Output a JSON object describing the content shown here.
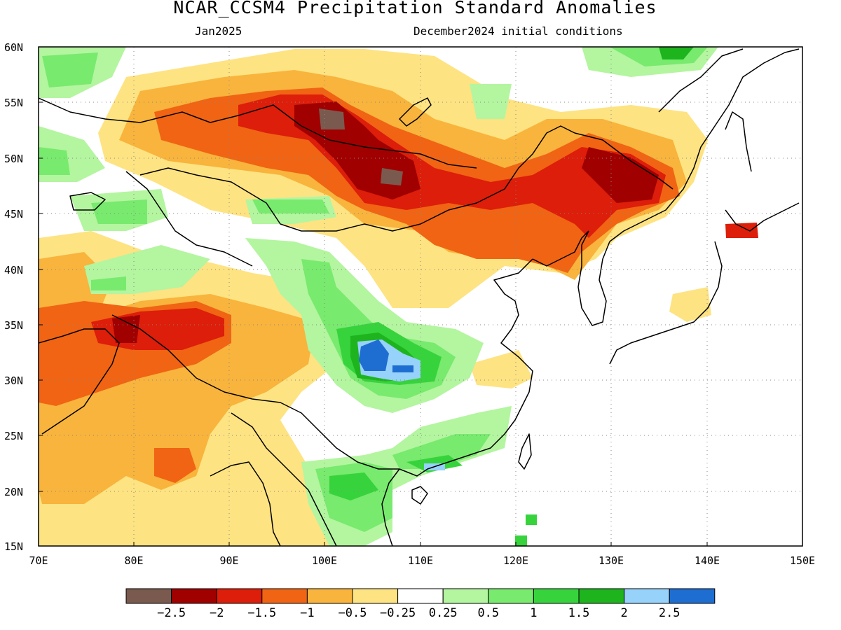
{
  "header": {
    "title": "NCAR_CCSM4 Precipitation Standard Anomalies",
    "target_month": "Jan2025",
    "init_conditions": "December2024 initial conditions"
  },
  "map": {
    "lon_range": [
      70,
      150
    ],
    "lat_range": [
      15,
      60
    ],
    "lat_ticks": [
      "60N",
      "55N",
      "50N",
      "45N",
      "40N",
      "35N",
      "30N",
      "25N",
      "20N",
      "15N"
    ],
    "lon_ticks": [
      "70E",
      "80E",
      "90E",
      "100E",
      "110E",
      "120E",
      "130E",
      "140E",
      "150E"
    ],
    "grid_lines": "dotted"
  },
  "colorbar": {
    "labels": [
      "−2.5",
      "−2",
      "−1.5",
      "−1",
      "−0.5",
      "−0.25",
      "0.25",
      "0.5",
      "1",
      "1.5",
      "2",
      "2.5"
    ],
    "colors": [
      "#7a5a4e",
      "#a00000",
      "#dc1e0a",
      "#f06414",
      "#f8b43c",
      "#fee382",
      "#ffffff",
      "#b4f5a0",
      "#78ea6e",
      "#37d33c",
      "#1eb41e",
      "#96d2fa",
      "#1e6ed2"
    ]
  }
}
